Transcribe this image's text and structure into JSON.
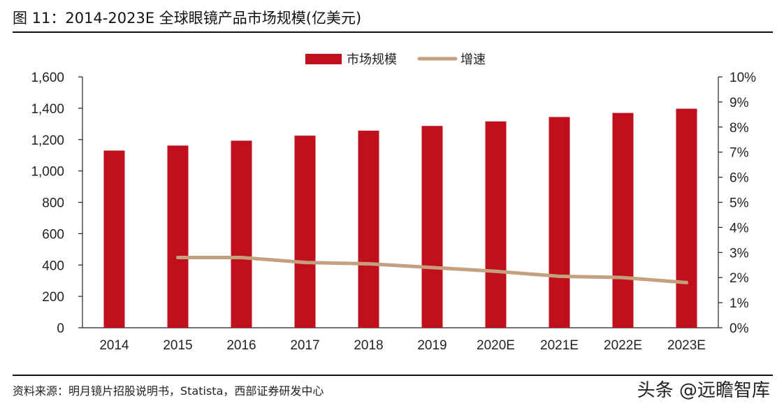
{
  "header": {
    "title": "图 11：2014-2023E 全球眼镜产品市场规模(亿美元)"
  },
  "footer": {
    "source": "资料来源：明月镜片招股说明书，Statista，西部证券研发中心",
    "watermark": "头条 @远瞻智库"
  },
  "chart_data": {
    "type": "bar",
    "categories": [
      "2014",
      "2015",
      "2016",
      "2017",
      "2018",
      "2019",
      "2020E",
      "2021E",
      "2022E",
      "2023E"
    ],
    "series": [
      {
        "name": "市场规模",
        "type": "bar",
        "axis": "left",
        "color": "#c0101e",
        "values": [
          1130,
          1162,
          1193,
          1225,
          1257,
          1287,
          1316,
          1344,
          1370,
          1397
        ]
      },
      {
        "name": "增速",
        "type": "line",
        "axis": "right",
        "color": "#c4a07e",
        "values": [
          null,
          2.8,
          2.8,
          2.6,
          2.55,
          2.4,
          2.25,
          2.05,
          2.0,
          1.8
        ]
      }
    ],
    "y_left": {
      "ylim": [
        0,
        1600
      ],
      "ticks": [
        "0",
        "200",
        "400",
        "600",
        "800",
        "1,000",
        "1,200",
        "1,400",
        "1,600"
      ]
    },
    "y_right": {
      "ylim": [
        0,
        10
      ],
      "unit": "%",
      "ticks": [
        "0%",
        "1%",
        "2%",
        "3%",
        "4%",
        "5%",
        "6%",
        "7%",
        "8%",
        "9%",
        "10%"
      ]
    },
    "legend": {
      "placement": "top-center",
      "entries": [
        "市场规模",
        "增速"
      ]
    },
    "grid": false
  }
}
